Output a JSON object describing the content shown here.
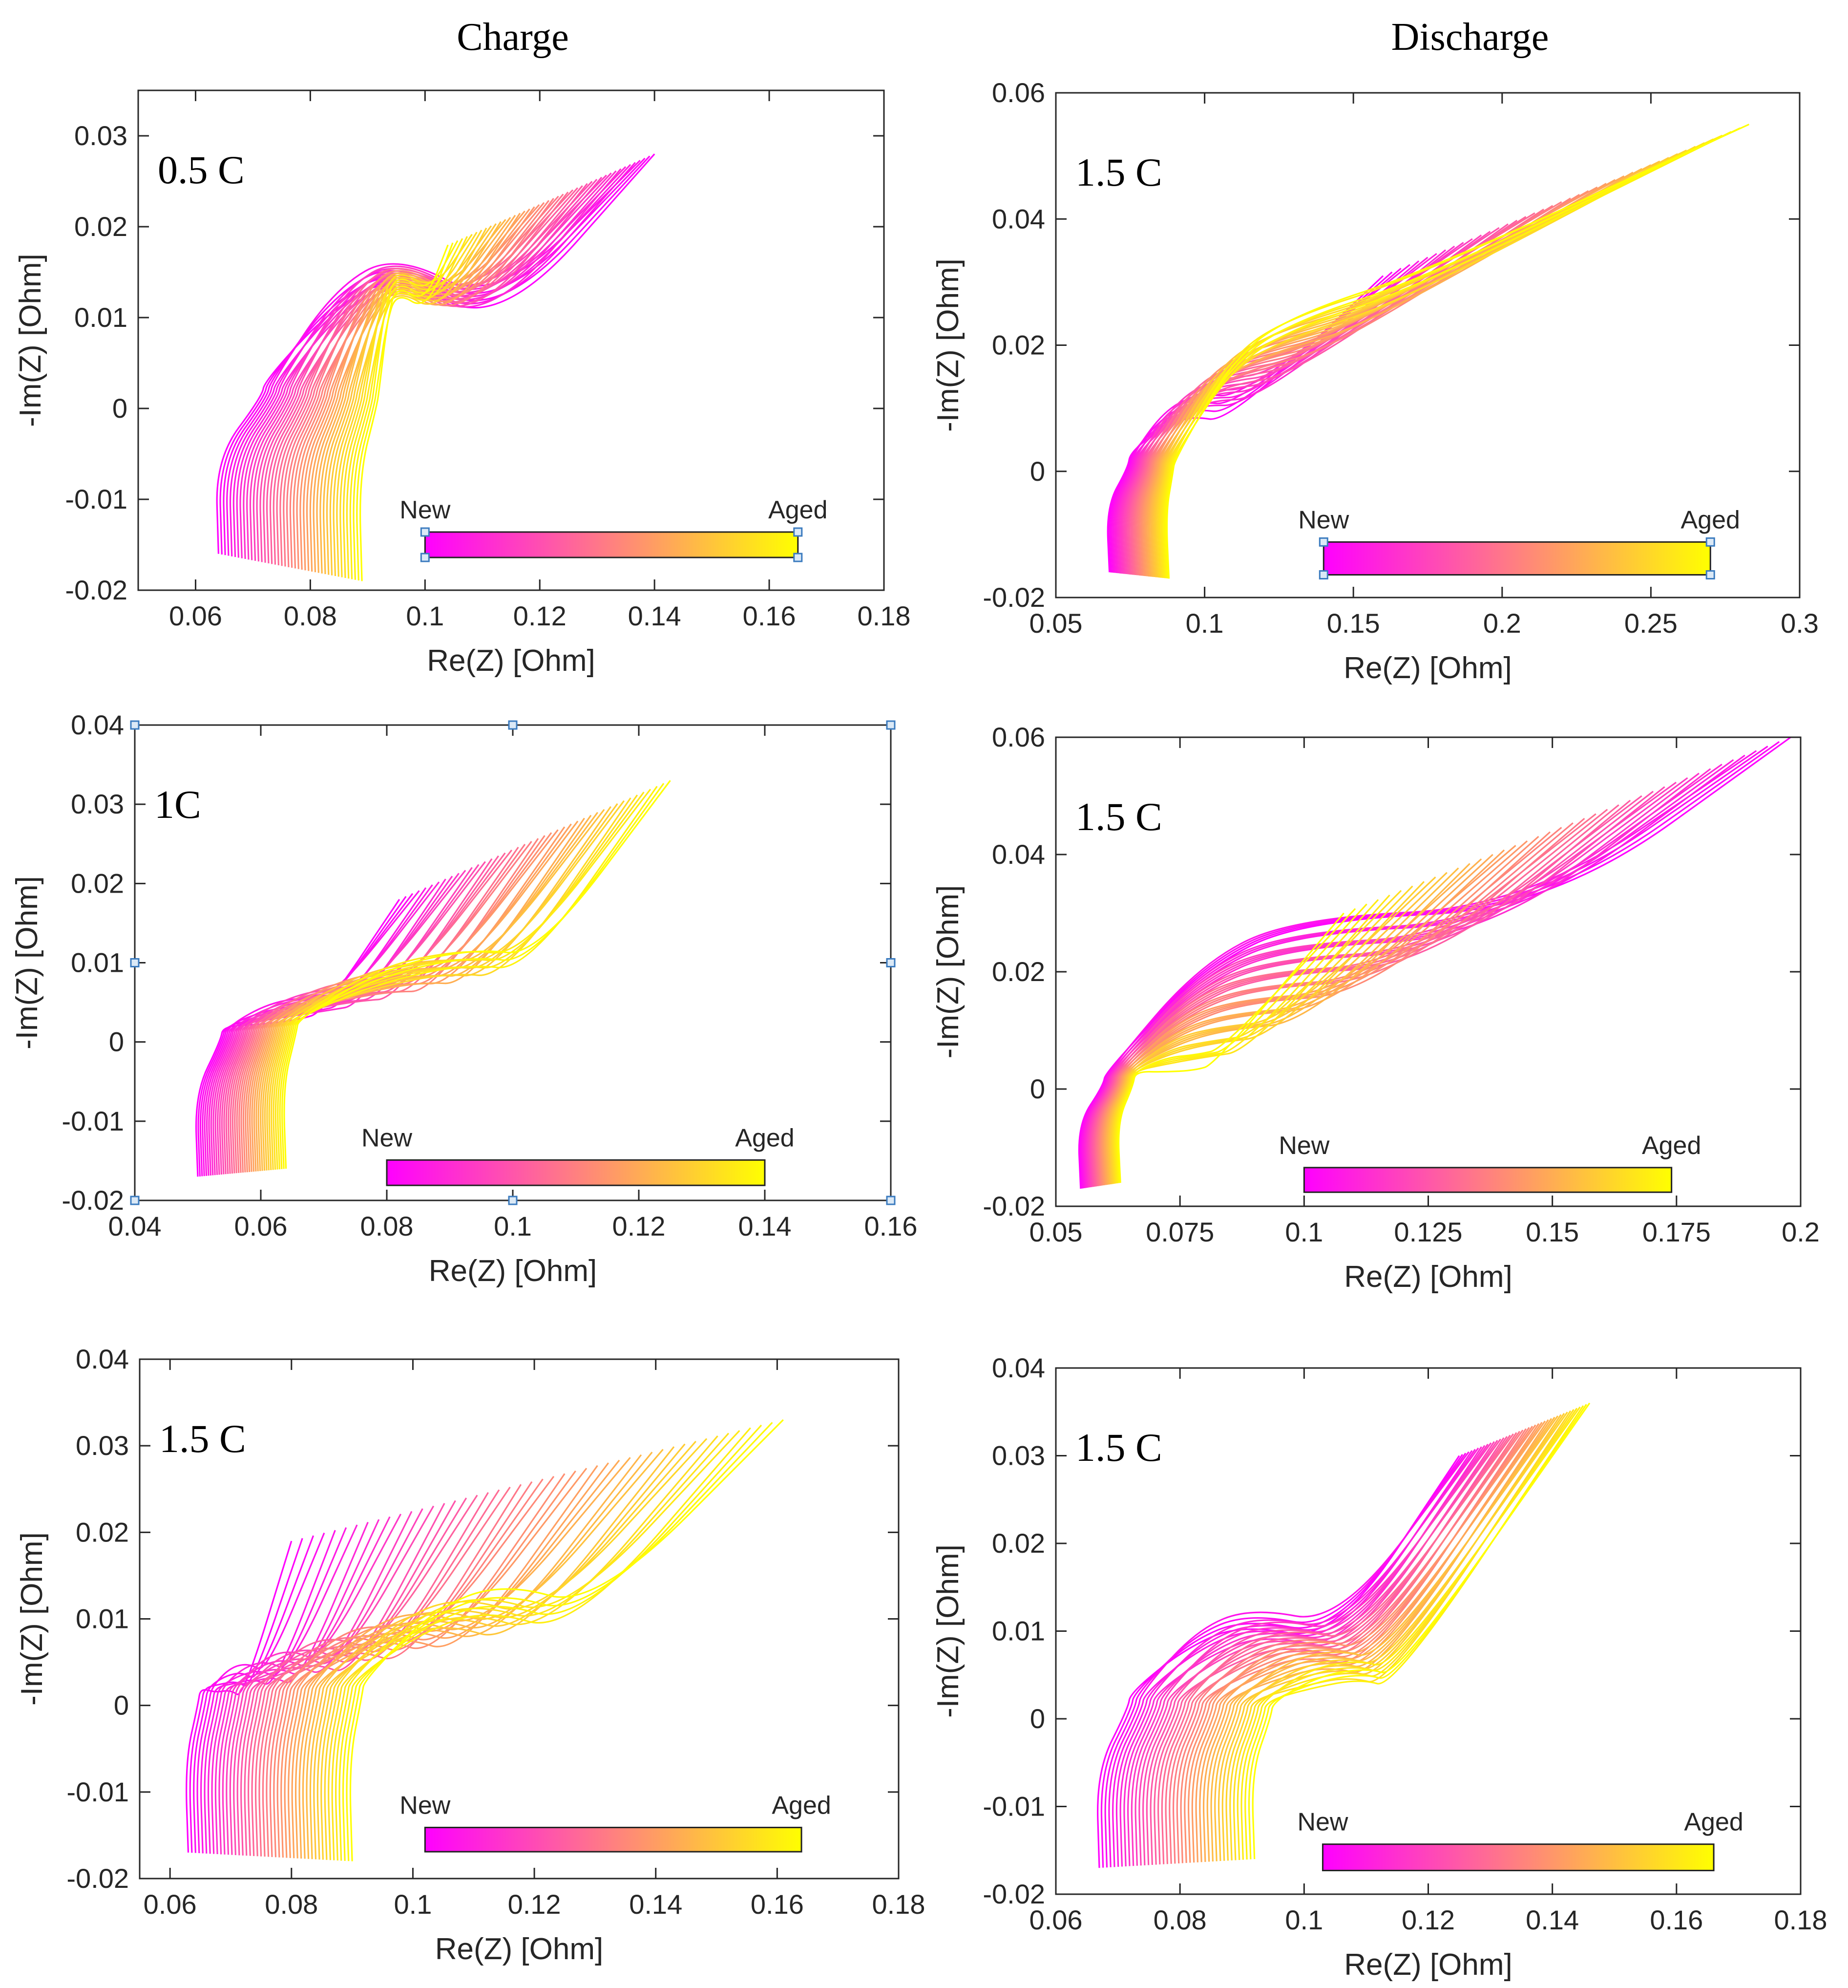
{
  "figure": {
    "column_titles": [
      "Charge",
      "Discharge"
    ]
  },
  "colorbar": {
    "colors": [
      "#ff00ff",
      "#ff8080",
      "#ffff00"
    ]
  },
  "chart_data": [
    {
      "id": "charge-0.5C",
      "type": "line",
      "rate_label": "0.5 C",
      "xlabel": "Re(Z) [Ohm]",
      "ylabel": "-Im(Z) [Ohm]",
      "xlim": [
        0.05,
        0.18
      ],
      "ylim": [
        -0.02,
        0.035
      ],
      "xticks": [
        0.06,
        0.08,
        0.1,
        0.12,
        0.14,
        0.16,
        0.18
      ],
      "yticks": [
        -0.02,
        -0.01,
        0,
        0.01,
        0.02,
        0.03
      ],
      "colorbar": {
        "left_label": "New",
        "right_label": "Aged",
        "colors": [
          "#ff00ff",
          "#ffff00"
        ]
      },
      "series_count": 44,
      "series_note": "Nyquist curves colored from New (magenta) to Aged (yellow)",
      "new_curve": {
        "start": [
          0.064,
          -0.016
        ],
        "knee": [
          0.072,
          0.003
        ],
        "arc_peak": [
          0.095,
          0.016
        ],
        "arc_valley": [
          0.113,
          0.01
        ],
        "end": [
          0.14,
          0.028
        ]
      },
      "aged_curve": {
        "start": [
          0.089,
          -0.019
        ],
        "knee": [
          0.092,
          0.002
        ],
        "arc_peak": [
          0.095,
          0.014
        ],
        "arc_valley": [
          0.1,
          0.012
        ],
        "end": [
          0.104,
          0.018
        ]
      }
    },
    {
      "id": "discharge-1.5C-a",
      "type": "line",
      "rate_label": "1.5 C",
      "xlabel": "Re(Z) [Ohm]",
      "ylabel": "-Im(Z) [Ohm]",
      "xlim": [
        0.05,
        0.3
      ],
      "ylim": [
        -0.02,
        0.06
      ],
      "xticks": [
        0.05,
        0.1,
        0.15,
        0.2,
        0.25,
        0.3
      ],
      "yticks": [
        -0.02,
        0,
        0.02,
        0.04,
        0.06
      ],
      "colorbar": {
        "left_label": "New",
        "right_label": "Aged",
        "colors": [
          "#ff00ff",
          "#ffff00"
        ]
      },
      "series_count": 42,
      "series_note": "Nyquist curves colored from New (magenta) to Aged (yellow)",
      "new_curve": {
        "start": [
          0.068,
          -0.016
        ],
        "knee": [
          0.075,
          0.003
        ],
        "arc_peak": [
          0.095,
          0.01
        ],
        "arc_valley": [
          0.108,
          0.009
        ],
        "end": [
          0.16,
          0.031
        ]
      },
      "aged_curve": {
        "start": [
          0.088,
          -0.017
        ],
        "knee": [
          0.09,
          0.002
        ],
        "arc_peak": [
          0.13,
          0.024
        ],
        "arc_valley": [
          0.175,
          0.031
        ],
        "end": [
          0.283,
          0.055
        ]
      }
    },
    {
      "id": "charge-1C",
      "type": "line",
      "rate_label": "1C",
      "xlabel": "Re(Z) [Ohm]",
      "ylabel": "-Im(Z) [Ohm]",
      "xlim": [
        0.04,
        0.16
      ],
      "ylim": [
        -0.02,
        0.04
      ],
      "xticks": [
        0.04,
        0.06,
        0.08,
        0.1,
        0.12,
        0.14,
        0.16
      ],
      "yticks": [
        -0.02,
        -0.01,
        0,
        0.01,
        0.02,
        0.03,
        0.04
      ],
      "colorbar": {
        "left_label": "New",
        "right_label": "Aged",
        "colors": [
          "#ff00ff",
          "#ffff00"
        ]
      },
      "series_count": 42,
      "series_note": "Nyquist curves colored from New (magenta) to Aged (yellow)",
      "new_curve": {
        "start": [
          0.05,
          -0.017
        ],
        "knee": [
          0.054,
          0.002
        ],
        "arc_peak": [
          0.066,
          0.004
        ],
        "arc_valley": [
          0.07,
          0.005
        ],
        "end": [
          0.082,
          0.018
        ]
      },
      "aged_curve": {
        "start": [
          0.064,
          -0.016
        ],
        "knee": [
          0.066,
          0.003
        ],
        "arc_peak": [
          0.094,
          0.011
        ],
        "arc_valley": [
          0.104,
          0.01
        ],
        "end": [
          0.125,
          0.033
        ]
      }
    },
    {
      "id": "discharge-1.5C-b",
      "type": "line",
      "rate_label": "1.5 C",
      "xlabel": "Re(Z) [Ohm]",
      "ylabel": "-Im(Z) [Ohm]",
      "xlim": [
        0.05,
        0.2
      ],
      "ylim": [
        -0.02,
        0.06
      ],
      "xticks": [
        0.05,
        0.075,
        0.1,
        0.125,
        0.15,
        0.175,
        0.2
      ],
      "yticks": [
        -0.02,
        0,
        0.02,
        0.04,
        0.06
      ],
      "colorbar": {
        "left_label": "New",
        "right_label": "Aged",
        "colors": [
          "#ff00ff",
          "#ffff00"
        ]
      },
      "series_count": 40,
      "series_note": "Nyquist curves colored from New (magenta) to Aged (yellow)",
      "new_curve": {
        "start": [
          0.055,
          -0.017
        ],
        "knee": [
          0.06,
          0.003
        ],
        "arc_peak": [
          0.1,
          0.03
        ],
        "arc_valley": [
          0.15,
          0.032
        ],
        "end": [
          0.198,
          0.06
        ]
      },
      "aged_curve": {
        "start": [
          0.063,
          -0.016
        ],
        "knee": [
          0.066,
          0.003
        ],
        "arc_peak": [
          0.078,
          0.004
        ],
        "arc_valley": [
          0.082,
          0.005
        ],
        "end": [
          0.108,
          0.03
        ]
      }
    },
    {
      "id": "charge-1.5C",
      "type": "line",
      "rate_label": "1.5 C",
      "xlabel": "Re(Z) [Ohm]",
      "ylabel": "-Im(Z) [Ohm]",
      "xlim": [
        0.055,
        0.18
      ],
      "ylim": [
        -0.02,
        0.04
      ],
      "xticks": [
        0.06,
        0.08,
        0.1,
        0.12,
        0.14,
        0.16,
        0.18
      ],
      "yticks": [
        -0.02,
        -0.01,
        0,
        0.01,
        0.02,
        0.03,
        0.04
      ],
      "colorbar": {
        "left_label": "New",
        "right_label": "Aged",
        "colors": [
          "#ff00ff",
          "#ffff00"
        ]
      },
      "series_count": 46,
      "series_note": "Nyquist curves colored from New (magenta) to Aged (yellow)",
      "new_curve": {
        "start": [
          0.063,
          -0.017
        ],
        "knee": [
          0.065,
          0.002
        ],
        "arc_peak": [
          0.07,
          0.003
        ],
        "arc_valley": [
          0.072,
          0.002
        ],
        "end": [
          0.08,
          0.019
        ]
      },
      "aged_curve": {
        "start": [
          0.09,
          -0.018
        ],
        "knee": [
          0.092,
          0.003
        ],
        "arc_peak": [
          0.115,
          0.013
        ],
        "arc_valley": [
          0.13,
          0.01
        ],
        "end": [
          0.161,
          0.033
        ]
      }
    },
    {
      "id": "discharge-1.5C-c",
      "type": "line",
      "rate_label": "1.5 C",
      "xlabel": "Re(Z) [Ohm]",
      "ylabel": "-Im(Z) [Ohm]",
      "xlim": [
        0.06,
        0.18
      ],
      "ylim": [
        -0.02,
        0.04
      ],
      "xticks": [
        0.06,
        0.08,
        0.1,
        0.12,
        0.14,
        0.16,
        0.18
      ],
      "yticks": [
        -0.02,
        -0.01,
        0,
        0.01,
        0.02,
        0.03,
        0.04
      ],
      "colorbar": {
        "left_label": "New",
        "right_label": "Aged",
        "colors": [
          "#ff00ff",
          "#ffff00"
        ]
      },
      "series_count": 42,
      "series_note": "Nyquist curves colored from New (magenta) to Aged (yellow)",
      "new_curve": {
        "start": [
          0.067,
          -0.017
        ],
        "knee": [
          0.072,
          0.003
        ],
        "arc_peak": [
          0.09,
          0.012
        ],
        "arc_valley": [
          0.105,
          0.01
        ],
        "end": [
          0.125,
          0.03
        ]
      },
      "aged_curve": {
        "start": [
          0.092,
          -0.016
        ],
        "knee": [
          0.095,
          0.002
        ],
        "arc_peak": [
          0.11,
          0.005
        ],
        "arc_valley": [
          0.115,
          0.004
        ],
        "end": [
          0.146,
          0.036
        ]
      }
    }
  ]
}
